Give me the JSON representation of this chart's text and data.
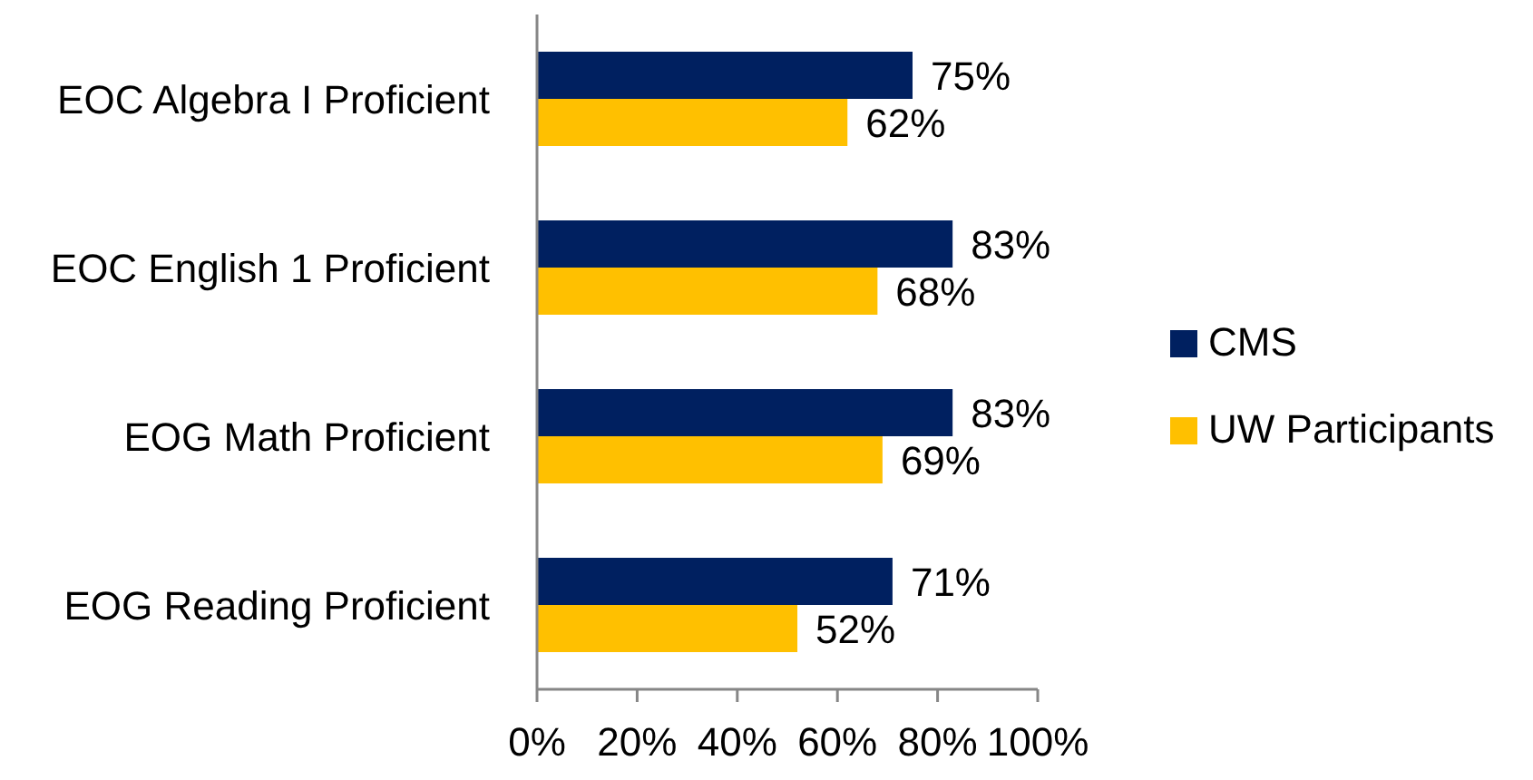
{
  "chart_data": {
    "type": "bar",
    "orientation": "horizontal",
    "categories": [
      "EOC Algebra I Proficient",
      "EOC English 1 Proficient",
      "EOG Math Proficient",
      "EOG Reading Proficient"
    ],
    "series": [
      {
        "name": "CMS",
        "color": "#002060",
        "values": [
          75,
          83,
          83,
          71
        ],
        "value_labels": [
          "75%",
          "83%",
          "83%",
          "71%"
        ]
      },
      {
        "name": "UW Participants",
        "color": "#ffc000",
        "values": [
          62,
          68,
          69,
          52
        ],
        "value_labels": [
          "62%",
          "68%",
          "69%",
          "52%"
        ]
      }
    ],
    "xlim": [
      0,
      100
    ],
    "xticks": [
      {
        "value": 0,
        "label": "0%"
      },
      {
        "value": 20,
        "label": "20%"
      },
      {
        "value": 40,
        "label": "40%"
      },
      {
        "value": 60,
        "label": "60%"
      },
      {
        "value": 80,
        "label": "80%"
      },
      {
        "value": 100,
        "label": "100%"
      }
    ],
    "legend": "right"
  }
}
